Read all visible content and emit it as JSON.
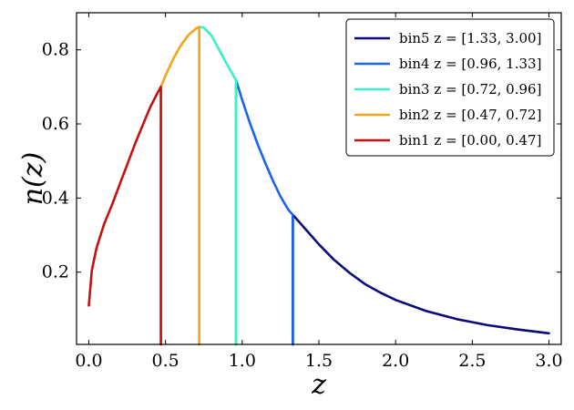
{
  "chart_data": {
    "type": "line",
    "title": "",
    "xlabel": "z",
    "ylabel": "n(z)",
    "xlim": [
      -0.08,
      3.08
    ],
    "ylim": [
      0.005,
      0.9
    ],
    "x_ticks": [
      0.0,
      0.5,
      1.0,
      1.5,
      2.0,
      2.5,
      3.0
    ],
    "x_tick_labels": [
      "0.0",
      "0.5",
      "1.0",
      "1.5",
      "2.0",
      "2.5",
      "3.0"
    ],
    "y_ticks": [
      0.2,
      0.4,
      0.6,
      0.8
    ],
    "y_tick_labels": [
      "0.2",
      "0.4",
      "0.6",
      "0.8"
    ],
    "grid": false,
    "legend_position": "top-right",
    "series": [
      {
        "name": "bin5 z = [1.33, 3.00]",
        "color": "#0a0a78",
        "x": [
          1.33,
          1.33,
          1.4,
          1.5,
          1.6,
          1.7,
          1.8,
          1.9,
          2.0,
          2.2,
          2.4,
          2.6,
          2.8,
          3.0
        ],
        "y": [
          0.005,
          0.355,
          0.322,
          0.275,
          0.233,
          0.198,
          0.168,
          0.145,
          0.125,
          0.095,
          0.073,
          0.057,
          0.045,
          0.035
        ]
      },
      {
        "name": "bin4 z = [0.96, 1.33]",
        "color": "#1a64f0",
        "x": [
          0.96,
          0.96,
          1.0,
          1.05,
          1.1,
          1.15,
          1.2,
          1.25,
          1.3,
          1.33,
          1.33
        ],
        "y": [
          0.005,
          0.718,
          0.665,
          0.603,
          0.546,
          0.495,
          0.447,
          0.404,
          0.369,
          0.355,
          0.005
        ]
      },
      {
        "name": "bin3 z = [0.72, 0.96]",
        "color": "#38f2c8",
        "x": [
          0.72,
          0.72,
          0.75,
          0.8,
          0.85,
          0.9,
          0.96,
          0.96
        ],
        "y": [
          0.005,
          0.862,
          0.86,
          0.838,
          0.8,
          0.761,
          0.718,
          0.005
        ]
      },
      {
        "name": "bin2 z = [0.47, 0.72]",
        "color": "#f5a41c",
        "x": [
          0.47,
          0.47,
          0.5,
          0.55,
          0.6,
          0.65,
          0.7,
          0.72,
          0.72
        ],
        "y": [
          0.005,
          0.7,
          0.73,
          0.775,
          0.812,
          0.84,
          0.858,
          0.862,
          0.005
        ]
      },
      {
        "name": "bin1 z = [0.00, 0.47]",
        "color": "#c80f0f",
        "x": [
          0.0,
          0.02,
          0.05,
          0.1,
          0.15,
          0.2,
          0.25,
          0.3,
          0.35,
          0.4,
          0.45,
          0.47,
          0.47
        ],
        "y": [
          0.11,
          0.205,
          0.265,
          0.33,
          0.38,
          0.435,
          0.49,
          0.545,
          0.595,
          0.645,
          0.685,
          0.7,
          0.005
        ]
      }
    ]
  }
}
